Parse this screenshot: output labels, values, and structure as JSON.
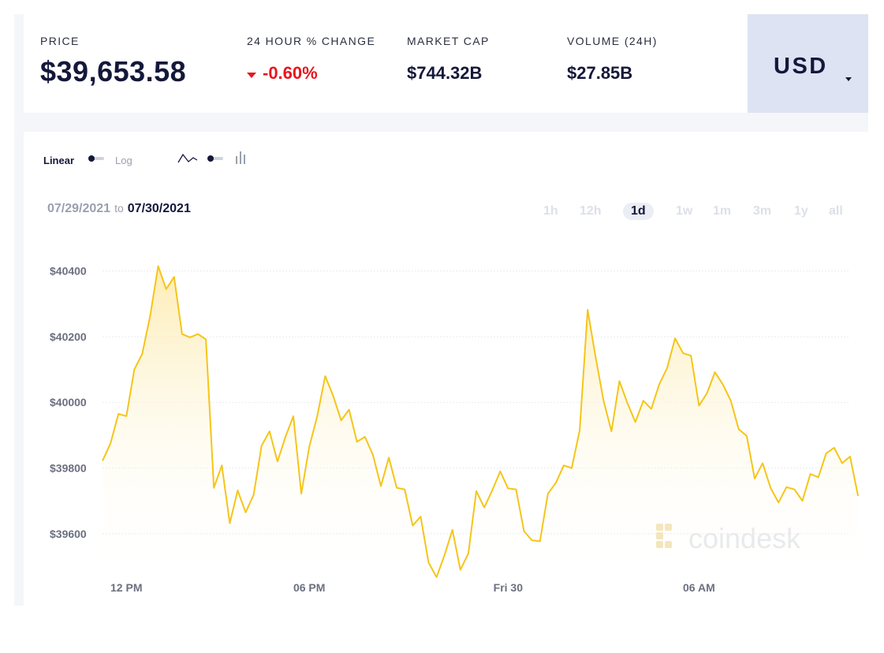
{
  "stats": {
    "price": {
      "label": "PRICE",
      "value": "$39,653.58"
    },
    "change": {
      "label": "24 HOUR % CHANGE",
      "value": "-0.60%",
      "direction": "down",
      "color": "#e8151f"
    },
    "market_cap": {
      "label": "MARKET CAP",
      "value": "$744.32B"
    },
    "volume": {
      "label": "VOLUME (24H)",
      "value": "$27.85B"
    },
    "currency": {
      "value": "USD"
    }
  },
  "controls": {
    "scale_linear": "Linear",
    "scale_log": "Log",
    "scale_selected": "Linear",
    "chart_type_selected": "line",
    "range_start": "07/29/2021",
    "range_to": "to",
    "range_end": "07/30/2021",
    "periods": [
      "1h",
      "12h",
      "1d",
      "1w",
      "1m",
      "3m",
      "1y",
      "all"
    ],
    "period_selected": "1d"
  },
  "watermark": "coindesk",
  "colors": {
    "line": "#f5c518",
    "fill": "#fff4d6",
    "accent": "#dde3f2",
    "dark": "#14183a",
    "negative": "#e8151f"
  },
  "chart_data": {
    "type": "line",
    "title": "",
    "xlabel": "",
    "ylabel": "",
    "x_ticks": [
      {
        "label": "12 PM",
        "x": 3
      },
      {
        "label": "06 PM",
        "x": 26
      },
      {
        "label": "Fri 30",
        "x": 51
      },
      {
        "label": "06 AM",
        "x": 75
      }
    ],
    "xlim": [
      0,
      94
    ],
    "ylim": [
      39465,
      40440
    ],
    "y_ticks": [
      {
        "label": "$40400",
        "value": 40400
      },
      {
        "label": "$40200",
        "value": 40200
      },
      {
        "label": "$40000",
        "value": 40000
      },
      {
        "label": "$39800",
        "value": 39800
      },
      {
        "label": "$39600",
        "value": 39600
      }
    ],
    "grid": true,
    "series": [
      {
        "values": [
          39822,
          39875,
          39965,
          39958,
          40100,
          40148,
          40265,
          40415,
          40345,
          40382,
          40208,
          40198,
          40208,
          40192,
          39740,
          39808,
          39632,
          39732,
          39665,
          39718,
          39868,
          39912,
          39820,
          39895,
          39958,
          39722,
          39865,
          39958,
          40080,
          40020,
          39945,
          39978,
          39880,
          39895,
          39840,
          39745,
          39832,
          39740,
          39735,
          39625,
          39652,
          39512,
          39468,
          39535,
          39612,
          39490,
          39540,
          39730,
          39680,
          39732,
          39790,
          39738,
          39735,
          39608,
          39580,
          39577,
          39722,
          39755,
          39808,
          39800,
          39915,
          40282,
          40138,
          40005,
          39912,
          40065,
          39998,
          39940,
          40005,
          39980,
          40055,
          40105,
          40195,
          40150,
          40142,
          39990,
          40028,
          40092,
          40055,
          40005,
          39918,
          39898,
          39768,
          39815,
          39740,
          39695,
          39742,
          39735,
          39700,
          39782,
          39772,
          39845,
          39862,
          39815,
          39835,
          39715
        ]
      }
    ]
  }
}
